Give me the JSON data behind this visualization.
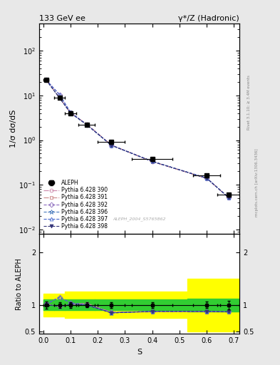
{
  "title_left": "133 GeV ee",
  "title_right": "γ*/Z (Hadronic)",
  "ylabel_main": "1/σ dσ/dS",
  "ylabel_ratio": "Ratio to ALEPH",
  "xlabel": "S",
  "watermark": "ALEPH_2004_S5765862",
  "rivet_label": "Rivet 3.1.10; ≥ 3.4M events",
  "mcplots_label": "mcplots.cern.ch [arXiv:1306.3436]",
  "data_x": [
    0.01,
    0.06,
    0.1,
    0.16,
    0.25,
    0.4,
    0.6,
    0.68
  ],
  "data_y": [
    22.0,
    9.0,
    4.0,
    2.2,
    0.9,
    0.38,
    0.16,
    0.06
  ],
  "data_xerr": [
    0.01,
    0.02,
    0.02,
    0.03,
    0.05,
    0.075,
    0.05,
    0.04
  ],
  "data_yerr": [
    1.5,
    0.5,
    0.2,
    0.1,
    0.05,
    0.02,
    0.01,
    0.005
  ],
  "mc_x": [
    0.01,
    0.06,
    0.1,
    0.16,
    0.25,
    0.4,
    0.6,
    0.68
  ],
  "mc_lines": [
    {
      "label": "Pythia 6.428 390",
      "color": "#cc88aa",
      "marker": "o",
      "ls": "-.",
      "mfc": "none",
      "ratio": [
        1.02,
        0.97,
        1.01,
        1.03,
        0.86,
        0.87,
        0.87,
        0.87
      ]
    },
    {
      "label": "Pythia 6.428 391",
      "color": "#cc8888",
      "marker": "s",
      "ls": "-.",
      "mfc": "none",
      "ratio": [
        1.02,
        0.97,
        1.01,
        1.03,
        0.86,
        0.87,
        0.87,
        0.87
      ]
    },
    {
      "label": "Pythia 6.428 392",
      "color": "#8866bb",
      "marker": "D",
      "ls": "--",
      "mfc": "none",
      "ratio": [
        1.02,
        1.15,
        1.04,
        1.01,
        0.86,
        0.88,
        0.88,
        0.87
      ]
    },
    {
      "label": "Pythia 6.428 396",
      "color": "#4477bb",
      "marker": "*",
      "ls": "--",
      "mfc": "none",
      "ratio": [
        1.01,
        0.97,
        1.01,
        1.0,
        0.85,
        0.88,
        0.88,
        0.87
      ]
    },
    {
      "label": "Pythia 6.428 397",
      "color": "#4466cc",
      "marker": "^",
      "ls": "--",
      "mfc": "none",
      "ratio": [
        1.01,
        1.15,
        1.04,
        1.0,
        0.85,
        0.88,
        0.88,
        0.87
      ]
    },
    {
      "label": "Pythia 6.428 398",
      "color": "#333377",
      "marker": "v",
      "ls": "--",
      "mfc": "#333377",
      "ratio": [
        1.01,
        0.97,
        1.01,
        1.0,
        0.85,
        0.88,
        0.88,
        0.87
      ]
    }
  ],
  "band_edges": [
    0.0,
    0.04,
    0.08,
    0.19,
    0.53,
    0.72
  ],
  "band_green_lo": [
    0.9,
    0.9,
    0.9,
    0.9,
    0.88,
    0.88
  ],
  "band_green_hi": [
    1.1,
    1.1,
    1.1,
    1.1,
    1.12,
    1.12
  ],
  "band_yellow_lo": [
    0.78,
    0.78,
    0.75,
    0.75,
    0.5,
    0.5
  ],
  "band_yellow_hi": [
    1.22,
    1.22,
    1.25,
    1.25,
    1.5,
    1.5
  ],
  "ylim_main": [
    0.008,
    400
  ],
  "ylim_ratio": [
    0.45,
    2.35
  ],
  "xlim": [
    -0.015,
    0.72
  ],
  "bg_color": "#e8e8e8",
  "plot_bg": "#ffffff"
}
